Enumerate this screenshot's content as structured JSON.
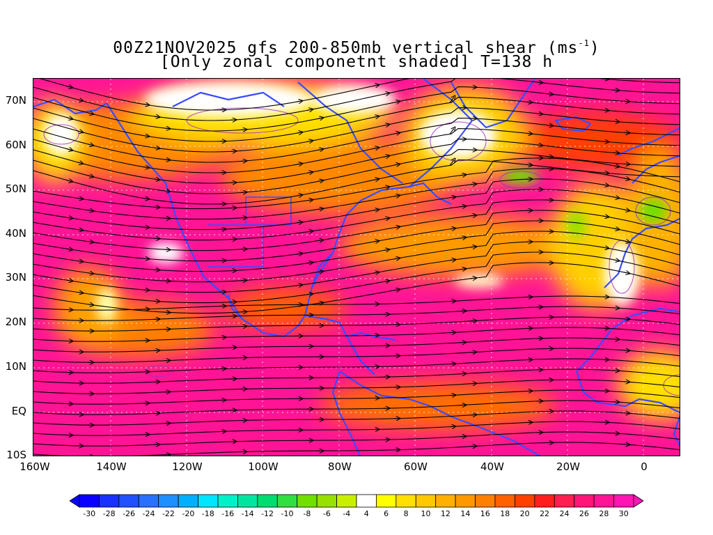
{
  "title": {
    "line1_pre": "00Z21NOV2025 gfs 200-850mb vertical shear (ms",
    "line1_sup": "-1",
    "line1_post": ")",
    "line2": "[Only zonal componetnt shaded] T=138 h"
  },
  "map": {
    "lat_labels": [
      "70N",
      "60N",
      "50N",
      "40N",
      "30N",
      "20N",
      "10N",
      "EQ",
      "10S"
    ],
    "lon_labels": [
      "160W",
      "140W",
      "120W",
      "100W",
      "80W",
      "60W",
      "40W",
      "20W",
      "0"
    ],
    "colors": {
      "land_outline": "#3a4bff",
      "streamline": "#000000",
      "contour": "#a030c0",
      "grid": "#ffffff"
    }
  },
  "colorbar": {
    "labels": [
      "-30",
      "-28",
      "-26",
      "-24",
      "-22",
      "-20",
      "-18",
      "-16",
      "-14",
      "-12",
      "-10",
      "-8",
      "-6",
      "-4",
      "4",
      "6",
      "8",
      "10",
      "12",
      "14",
      "16",
      "18",
      "20",
      "22",
      "24",
      "26",
      "28",
      "30"
    ],
    "colors": [
      "#0a00ff",
      "#1a30ff",
      "#2050ff",
      "#2a70ff",
      "#1e90ff",
      "#00b0ff",
      "#00e6ff",
      "#00f0c8",
      "#00e6a0",
      "#00dc70",
      "#30e040",
      "#70e000",
      "#98e000",
      "#c8f000",
      "#ffffff",
      "#ffff00",
      "#ffe000",
      "#ffc800",
      "#ffb000",
      "#ff9800",
      "#ff8000",
      "#ff6000",
      "#ff4000",
      "#ff1e1e",
      "#ff1e50",
      "#ff1478",
      "#ff1496",
      "#ff14b4"
    ]
  }
}
